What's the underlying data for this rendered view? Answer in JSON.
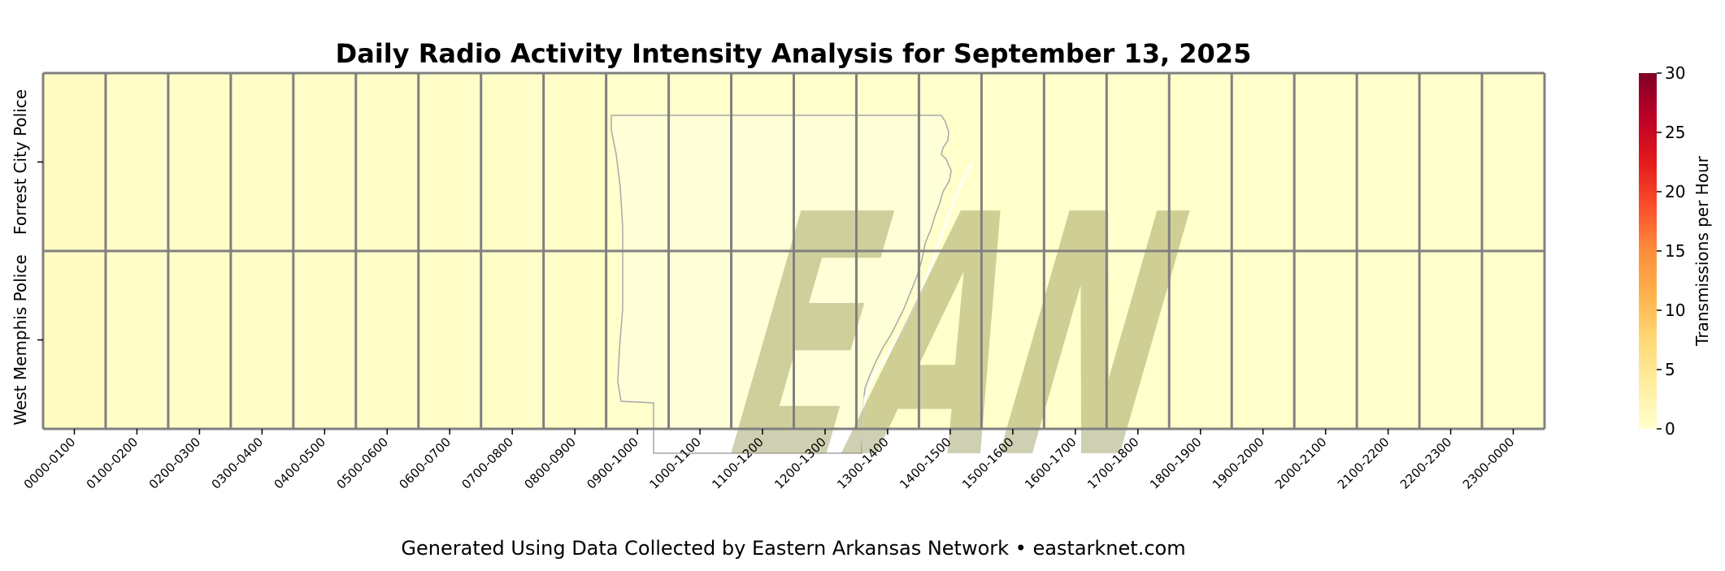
{
  "chart_data": {
    "type": "heatmap",
    "title": "Daily Radio Activity Intensity Analysis for September 13, 2025",
    "footer": "Generated Using Data Collected by Eastern Arkansas Network • eastarknet.com",
    "xlabel": "",
    "ylabel": "",
    "x_categories": [
      "0000-0100",
      "0100-0200",
      "0200-0300",
      "0300-0400",
      "0400-0500",
      "0500-0600",
      "0600-0700",
      "0700-0800",
      "0800-0900",
      "0900-1000",
      "1000-1100",
      "1100-1200",
      "1200-1300",
      "1300-1400",
      "1400-1500",
      "1500-1600",
      "1600-1700",
      "1700-1800",
      "1800-1900",
      "1900-2000",
      "2000-2100",
      "2100-2200",
      "2200-2300",
      "2300-0000"
    ],
    "y_categories": [
      "Forrest City Police",
      "West Memphis Police"
    ],
    "values": [
      [
        0.8,
        0.3,
        0.3,
        0.3,
        0.3,
        0.3,
        0.3,
        0.3,
        0.3,
        0,
        0,
        0,
        0,
        0,
        0,
        0,
        0,
        0,
        0,
        0,
        0,
        0,
        0,
        0
      ],
      [
        0.8,
        0.3,
        0.3,
        0.3,
        0.3,
        0.3,
        0.3,
        0.3,
        0.3,
        0,
        0,
        0,
        0,
        0,
        0,
        0,
        0,
        0,
        0,
        0,
        0,
        0,
        0,
        0
      ]
    ],
    "colorbar": {
      "label": "Transmissions per Hour",
      "range": [
        0,
        30
      ],
      "ticks": [
        0,
        5,
        10,
        15,
        20,
        25,
        30
      ],
      "colormap": "YlOrRd",
      "stops": [
        "#ffffcc",
        "#ffeda0",
        "#fed976",
        "#feb24c",
        "#fd8d3c",
        "#fc4e2a",
        "#e31a1c",
        "#bd0026",
        "#800026"
      ]
    },
    "grid": true,
    "watermark": {
      "text": "EAN",
      "color": "#8c8c4a"
    }
  }
}
